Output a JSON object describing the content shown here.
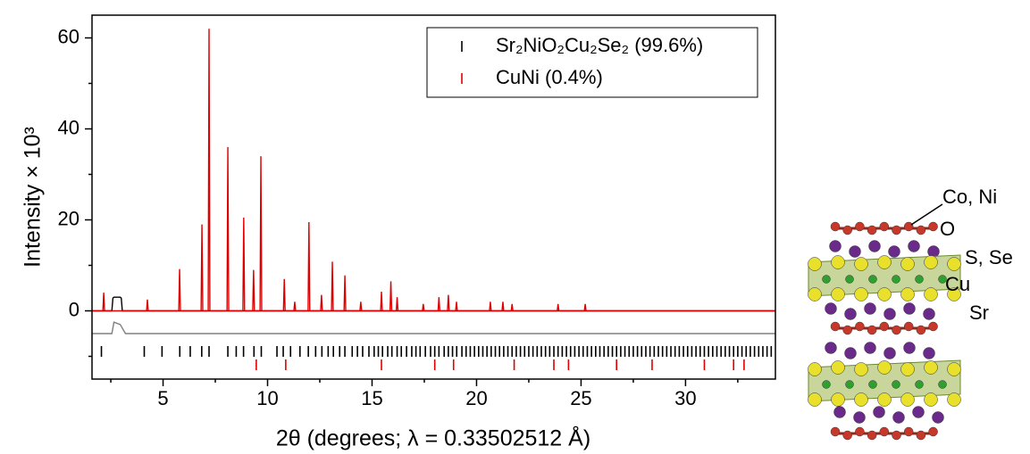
{
  "chart_data": {
    "type": "line",
    "ylabel": "Intensity × 10³",
    "xlabel": "2θ (degrees; λ = 0.33502512 Å)",
    "xlim": [
      1.6,
      34.3
    ],
    "xticks": [
      5,
      10,
      15,
      20,
      25,
      30
    ],
    "xminorticks": [
      2.5,
      7.5,
      12.5,
      17.5,
      22.5,
      27.5,
      32.5
    ],
    "ylim": [
      -15,
      65
    ],
    "yticks": [
      0,
      20,
      40,
      60
    ],
    "yminorticks": [
      -10,
      10,
      30,
      50
    ],
    "legend": "upper right",
    "series": [
      {
        "color": "#000000",
        "x": [
          1.6,
          2.55,
          2.6,
          2.65,
          2.95,
          3.0,
          3.05,
          34.3
        ],
        "values": [
          0,
          0,
          2.8,
          3,
          3,
          2.8,
          0,
          0
        ]
      },
      {
        "color": "#e00000",
        "x": [
          1.6,
          2.12,
          2.16,
          2.2,
          4.21,
          4.25,
          4.29,
          5.75,
          5.79,
          5.83,
          6.82,
          6.86,
          6.9,
          7.16,
          7.2,
          7.24,
          8.06,
          8.1,
          8.14,
          8.82,
          8.86,
          8.9,
          9.29,
          9.33,
          9.37,
          9.64,
          9.68,
          9.72,
          10.76,
          10.8,
          10.84,
          11.26,
          11.3,
          11.34,
          11.94,
          11.98,
          12.02,
          12.54,
          12.58,
          12.62,
          13.06,
          13.1,
          13.14,
          13.66,
          13.7,
          13.74,
          14.42,
          14.46,
          14.5,
          15.41,
          15.45,
          15.49,
          15.86,
          15.9,
          15.94,
          16.16,
          16.2,
          16.24,
          17.41,
          17.45,
          17.49,
          18.16,
          18.2,
          18.24,
          18.61,
          18.65,
          18.69,
          19,
          19.04,
          19.08,
          20.62,
          20.66,
          20.7,
          21.22,
          21.26,
          21.3,
          21.66,
          21.7,
          21.74,
          23.86,
          23.9,
          23.94,
          25.16,
          25.2,
          25.24,
          34.3
        ],
        "values": [
          0,
          0,
          4,
          0,
          0,
          2.5,
          0,
          0,
          9.2,
          0,
          0,
          19,
          0,
          0,
          62,
          0,
          0,
          36,
          0,
          0,
          20.5,
          0,
          0,
          9,
          0,
          0,
          34,
          0,
          0,
          7,
          0,
          0,
          2,
          0,
          0,
          19.5,
          0,
          0,
          3.5,
          0,
          0,
          10.8,
          0,
          0,
          7.8,
          0,
          0,
          2,
          0,
          0,
          4.2,
          0,
          0,
          6.5,
          0,
          0,
          3,
          0,
          0,
          1.5,
          0,
          0,
          3,
          0,
          0,
          3.5,
          0,
          0,
          2,
          0,
          0,
          2,
          0,
          0,
          2,
          0,
          0,
          1.5,
          0,
          0,
          1.5,
          0,
          0,
          1.5,
          0,
          0
        ]
      },
      {
        "color": "#808080",
        "x": [
          1.6,
          2.55,
          2.65,
          2.95,
          3.2,
          34.3
        ],
        "values": [
          -5,
          -5,
          -2.5,
          -3,
          -5,
          -5
        ]
      }
    ],
    "reflections": [
      {
        "name": "Sr₂NiO₂Cu₂Se₂ (99.6%)",
        "color": "#000000",
        "positions": [
          2.05,
          4.1,
          4.95,
          5.8,
          6.3,
          6.85,
          7.2,
          8.1,
          8.5,
          8.85,
          9.35,
          9.7,
          10.45,
          10.75,
          11.1,
          11.55,
          11.95,
          12.3,
          12.6,
          12.9,
          13.15,
          13.45,
          13.7,
          14.05,
          14.3,
          14.55,
          14.85,
          15.1,
          15.3,
          15.5,
          15.75,
          15.95,
          16.2,
          16.4,
          16.65,
          16.9,
          17.1,
          17.3,
          17.55,
          17.8,
          18.0,
          18.2,
          18.45,
          18.65,
          18.85,
          19.05,
          19.3,
          19.5,
          19.7,
          19.9,
          20.1,
          20.3,
          20.5,
          20.7,
          20.9,
          21.1,
          21.3,
          21.5,
          21.7,
          21.9,
          22.1,
          22.3,
          22.5,
          22.7,
          22.9,
          23.1,
          23.3,
          23.5,
          23.7,
          23.9,
          24.1,
          24.3,
          24.5,
          24.7,
          24.9,
          25.1,
          25.3,
          25.5,
          25.7,
          25.9,
          26.1,
          26.3,
          26.5,
          26.7,
          26.9,
          27.1,
          27.3,
          27.5,
          27.7,
          27.9,
          28.1,
          28.3,
          28.5,
          28.7,
          28.9,
          29.1,
          29.3,
          29.5,
          29.7,
          29.9,
          30.1,
          30.3,
          30.5,
          30.7,
          30.9,
          31.1,
          31.3,
          31.5,
          31.7,
          31.9,
          32.1,
          32.3,
          32.5,
          32.7,
          32.9,
          33.1,
          33.3,
          33.5,
          33.7,
          33.9,
          34.1
        ]
      },
      {
        "name": "CuNi (0.4%)",
        "color": "#e00000",
        "positions": [
          9.46,
          10.87,
          15.45,
          18.0,
          18.9,
          21.8,
          23.7,
          24.4,
          26.7,
          28.4,
          30.9,
          32.3,
          32.8
        ]
      }
    ]
  },
  "structure": {
    "labels": [
      "Co, Ni",
      "O",
      "S, Se",
      "Cu",
      "Sr"
    ]
  }
}
